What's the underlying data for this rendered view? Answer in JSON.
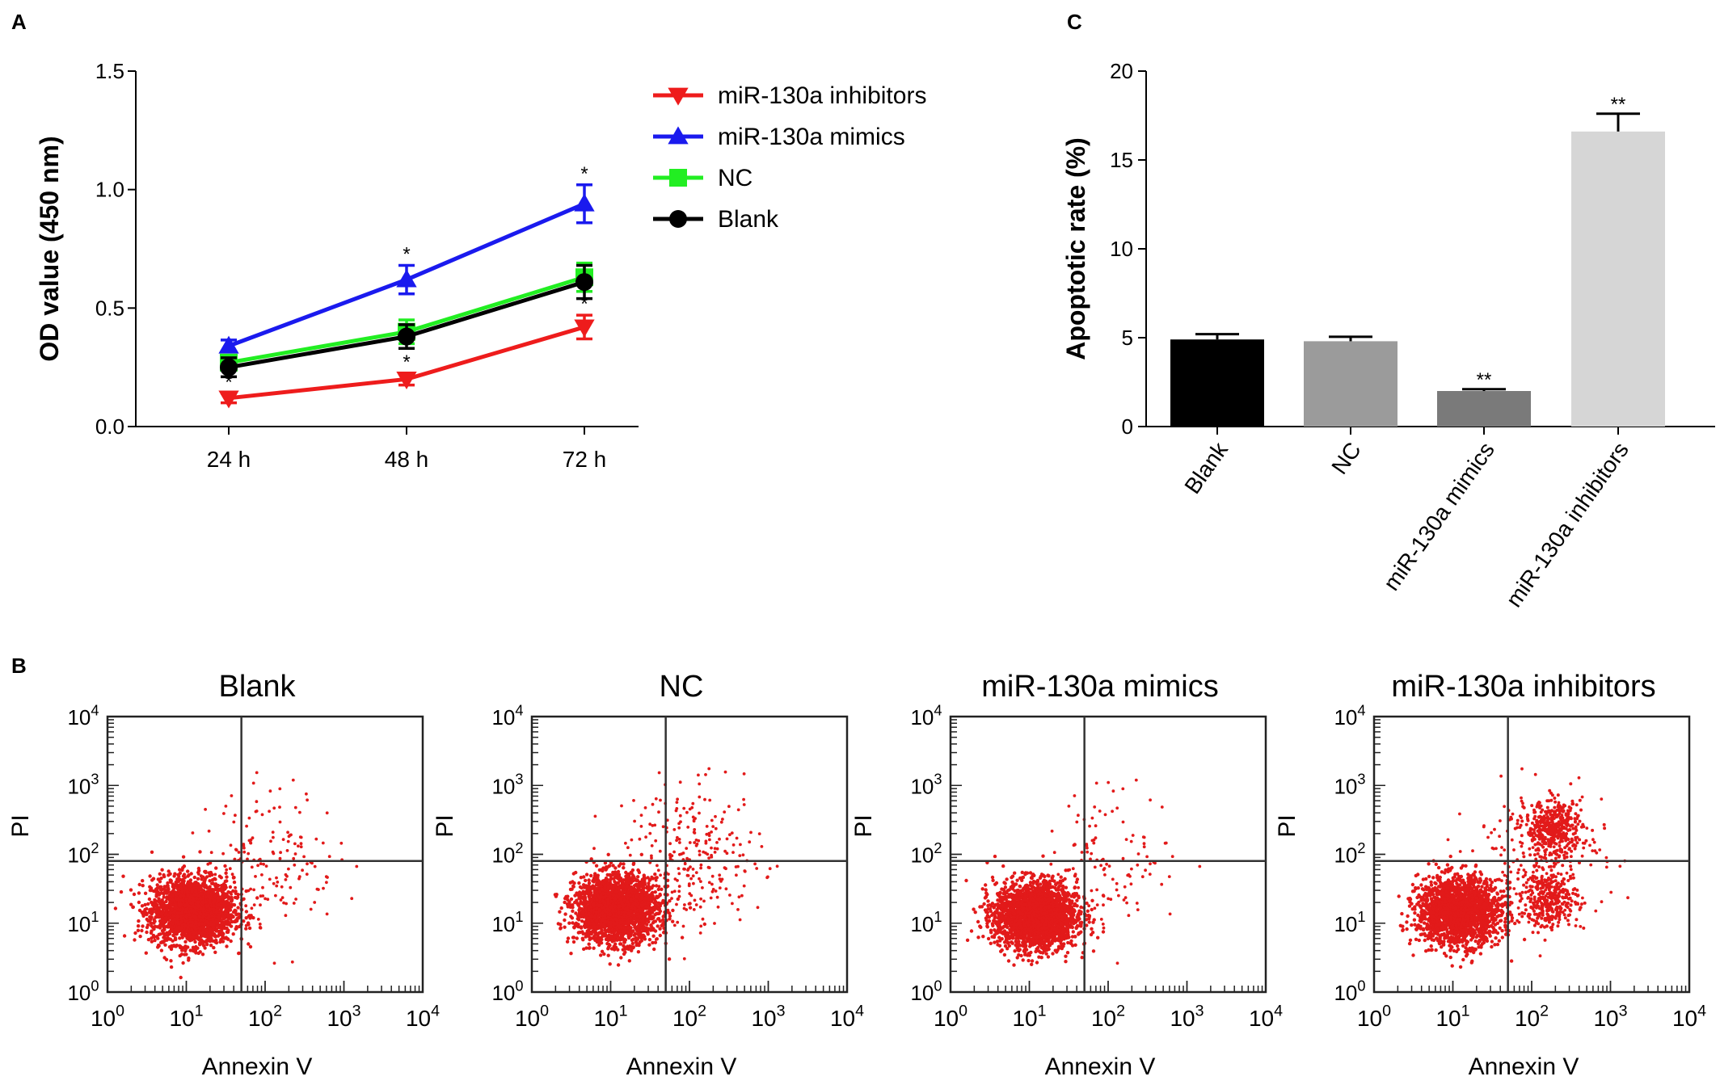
{
  "panels": {
    "a": {
      "letter": "A"
    },
    "b": {
      "letter": "B"
    },
    "c": {
      "letter": "C"
    }
  },
  "colors": {
    "inhibitors": "#ee1c1c",
    "mimics": "#1a1aee",
    "nc": "#22ee22",
    "blank": "#000000",
    "dots": "#e21a1a",
    "bar_blank": "#000000",
    "bar_nc": "#9b9b9b",
    "bar_mimics": "#7a7a7a",
    "bar_inhibitors": "#d6d6d6"
  },
  "chart_data": [
    {
      "id": "A",
      "type": "line",
      "categories": [
        "24 h",
        "48 h",
        "72 h"
      ],
      "ylabel": "OD value (450 nm)",
      "ylim": [
        0,
        1.5
      ],
      "yticks": [
        "0.0",
        "0.5",
        "1.0",
        "1.5"
      ],
      "legend_placement": "top-right",
      "series": [
        {
          "name": "miR-130a inhibitors",
          "marker": "triangle-down",
          "color": "#ee1c1c",
          "values": [
            0.12,
            0.2,
            0.42
          ],
          "errors": [
            0.02,
            0.025,
            0.05
          ],
          "annotations": [
            "*",
            "*",
            "*"
          ]
        },
        {
          "name": "miR-130a mimics",
          "marker": "triangle-up",
          "color": "#1a1aee",
          "values": [
            0.34,
            0.62,
            0.94
          ],
          "errors": [
            0.025,
            0.06,
            0.08
          ],
          "annotations": [
            "",
            "*",
            "*"
          ]
        },
        {
          "name": "NC",
          "marker": "square",
          "color": "#22ee22",
          "values": [
            0.27,
            0.4,
            0.63
          ],
          "errors": [
            0.03,
            0.05,
            0.06
          ],
          "annotations": [
            "",
            "",
            ""
          ]
        },
        {
          "name": "Blank",
          "marker": "circle",
          "color": "#000000",
          "values": [
            0.25,
            0.38,
            0.61
          ],
          "errors": [
            0.04,
            0.05,
            0.07
          ],
          "annotations": [
            "",
            "",
            ""
          ]
        }
      ]
    },
    {
      "id": "C",
      "type": "bar",
      "categories": [
        "Blank",
        "NC",
        "miR-130a mimics",
        "miR-130a inhibitors"
      ],
      "values": [
        4.9,
        4.8,
        2.0,
        16.6
      ],
      "errors": [
        0.3,
        0.25,
        0.1,
        1.0
      ],
      "annotations": [
        "",
        "",
        "**",
        "**"
      ],
      "ylabel": "Apoptotic rate (%)",
      "ylim": [
        0,
        20
      ],
      "yticks": [
        "0",
        "5",
        "10",
        "15",
        "20"
      ]
    },
    {
      "id": "B",
      "type": "scatter",
      "xlabel": "Annexin V",
      "ylabel": "PI",
      "axis_scale": "log",
      "ticks": [
        "10^0",
        "10^1",
        "10^2",
        "10^3",
        "10^4"
      ],
      "gate": {
        "x": 50,
        "y": 80
      },
      "plots": [
        {
          "title": "Blank",
          "main_cluster": {
            "x": 12,
            "y": 15,
            "n": 2400
          },
          "apoptotic_clusters": [],
          "sparse": 160
        },
        {
          "title": "NC",
          "main_cluster": {
            "x": 12,
            "y": 16,
            "n": 2400
          },
          "apoptotic_clusters": [],
          "sparse": 260
        },
        {
          "title": "miR-130a mimics",
          "main_cluster": {
            "x": 12,
            "y": 13,
            "n": 2400
          },
          "apoptotic_clusters": [],
          "sparse": 110
        },
        {
          "title": "miR-130a inhibitors",
          "main_cluster": {
            "x": 12,
            "y": 15,
            "n": 2000
          },
          "apoptotic_clusters": [
            {
              "x": 190,
              "y": 230,
              "n": 420
            },
            {
              "x": 170,
              "y": 22,
              "n": 330
            }
          ],
          "sparse": 220
        }
      ]
    }
  ]
}
